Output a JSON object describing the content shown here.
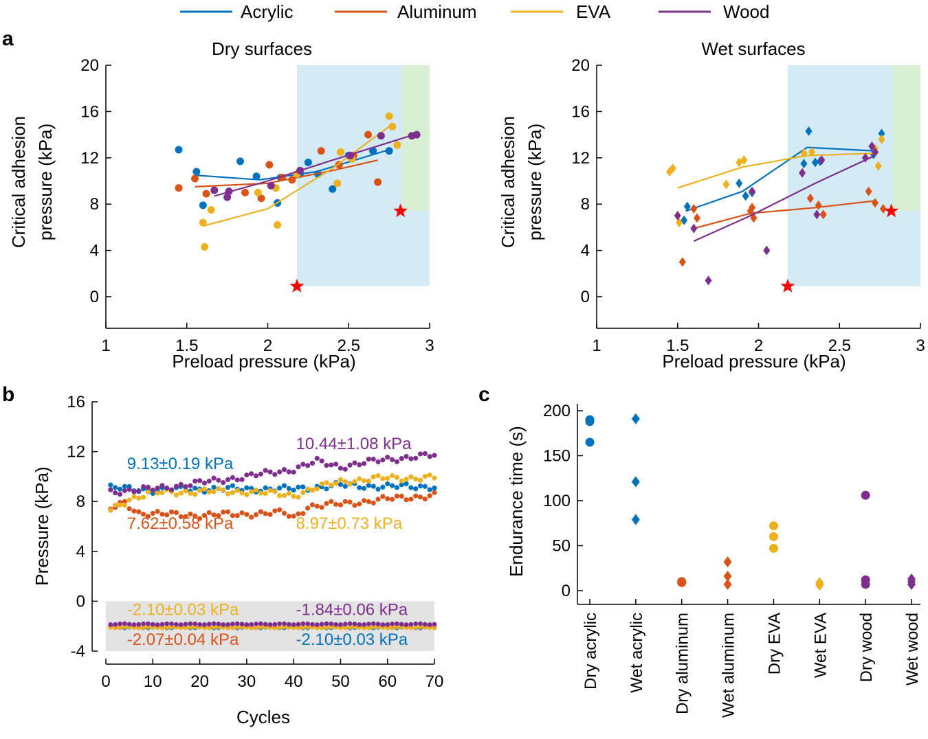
{
  "colors": {
    "acrylic": "#0072bd",
    "aluminum": "#d95319",
    "eva": "#edb120",
    "wood": "#7e2f8e",
    "star": "#ff0000",
    "blue_region": "#d4eaf5",
    "green_region": "#d8efd3",
    "gray_band": "#e3e3e3"
  },
  "legend": [
    {
      "label": "Acrylic",
      "color": "#0072bd"
    },
    {
      "label": "Aluminum",
      "color": "#d95319"
    },
    {
      "label": "EVA",
      "color": "#edb120"
    },
    {
      "label": "Wood",
      "color": "#7e2f8e"
    }
  ],
  "panels": {
    "a": "a",
    "b": "b",
    "c": "c"
  },
  "chart_data": [
    {
      "id": "dry",
      "type": "scatter",
      "title": "Dry surfaces",
      "xlabel": "Preload pressure (kPa)",
      "ylabel": [
        "Critical adhesion",
        "pressure (kPa)"
      ],
      "xlim": [
        1,
        3
      ],
      "ylim": [
        0,
        20
      ],
      "xticks": [
        1,
        1.5,
        2,
        2.5,
        3
      ],
      "xticklabels": [
        "1",
        "1.5",
        "2",
        "2.5",
        "3"
      ],
      "yticks": [
        0,
        4,
        8,
        12,
        16,
        20
      ],
      "yticklabels": [
        "0",
        "4",
        "8",
        "12",
        "16",
        "20"
      ],
      "regions": [
        {
          "x": [
            2.18,
            3.0
          ],
          "y": [
            0.9,
            20
          ],
          "color": "#d4eaf5"
        },
        {
          "x": [
            2.83,
            3.0
          ],
          "y": [
            7.4,
            20
          ],
          "color": "#d8efd3"
        }
      ],
      "stars": [
        {
          "x": 2.18,
          "y": 0.9
        },
        {
          "x": 2.82,
          "y": 7.4
        }
      ],
      "series": [
        {
          "name": "Acrylic",
          "color": "#0072bd",
          "points": [
            [
              1.45,
              12.7
            ],
            [
              1.56,
              10.8
            ],
            [
              1.6,
              7.9
            ],
            [
              1.83,
              11.7
            ],
            [
              1.93,
              10.4
            ],
            [
              2.06,
              8.1
            ],
            [
              2.08,
              10.3
            ],
            [
              2.2,
              10.6
            ],
            [
              2.25,
              11.6
            ],
            [
              2.31,
              10.6
            ],
            [
              2.4,
              9.3
            ],
            [
              2.5,
              12.2
            ],
            [
              2.65,
              12.6
            ],
            [
              2.75,
              12.6
            ]
          ],
          "fit": [
            [
              1.55,
              10.5
            ],
            [
              1.95,
              10.1
            ],
            [
              2.3,
              10.8
            ],
            [
              2.75,
              12.7
            ]
          ]
        },
        {
          "name": "Aluminum",
          "color": "#d95319",
          "points": [
            [
              1.45,
              9.4
            ],
            [
              1.55,
              10.2
            ],
            [
              1.62,
              8.9
            ],
            [
              1.86,
              9.0
            ],
            [
              1.96,
              8.5
            ],
            [
              2.01,
              11.4
            ],
            [
              2.09,
              10.3
            ],
            [
              2.15,
              10.1
            ],
            [
              2.33,
              12.6
            ],
            [
              2.44,
              11.4
            ],
            [
              2.53,
              12.2
            ],
            [
              2.62,
              14.0
            ],
            [
              2.68,
              9.9
            ]
          ],
          "fit": [
            [
              1.55,
              9.5
            ],
            [
              2.0,
              9.8
            ],
            [
              2.4,
              10.9
            ],
            [
              2.68,
              11.8
            ]
          ]
        },
        {
          "name": "EVA",
          "color": "#edb120",
          "points": [
            [
              1.6,
              6.4
            ],
            [
              1.61,
              4.3
            ],
            [
              1.65,
              7.5
            ],
            [
              1.94,
              9.0
            ],
            [
              2.05,
              9.4
            ],
            [
              2.06,
              6.2
            ],
            [
              2.18,
              10.6
            ],
            [
              2.43,
              9.8
            ],
            [
              2.45,
              12.5
            ],
            [
              2.52,
              11.9
            ],
            [
              2.75,
              15.6
            ],
            [
              2.77,
              14.7
            ],
            [
              2.8,
              13.1
            ]
          ],
          "fit": [
            [
              1.6,
              6.1
            ],
            [
              2.0,
              7.6
            ],
            [
              2.4,
              11.1
            ],
            [
              2.77,
              14.9
            ]
          ]
        },
        {
          "name": "Wood",
          "color": "#7e2f8e",
          "points": [
            [
              1.67,
              9.2
            ],
            [
              1.75,
              8.6
            ],
            [
              1.76,
              9.1
            ],
            [
              2.02,
              9.6
            ],
            [
              2.2,
              10.9
            ],
            [
              2.51,
              12.2
            ],
            [
              2.7,
              13.9
            ],
            [
              2.89,
              13.9
            ],
            [
              2.92,
              14.0
            ]
          ],
          "fit": [
            [
              1.67,
              8.7
            ],
            [
              2.0,
              10.0
            ],
            [
              2.4,
              11.8
            ],
            [
              2.88,
              13.9
            ]
          ]
        }
      ]
    },
    {
      "id": "wet",
      "type": "scatter",
      "title": "Wet surfaces",
      "xlabel": "Preload pressure (kPa)",
      "ylabel": [
        "Critical adhesion",
        "pressure (kPa)"
      ],
      "xlim": [
        1,
        3
      ],
      "ylim": [
        0,
        20
      ],
      "xticks": [
        1,
        1.5,
        2,
        2.5,
        3
      ],
      "xticklabels": [
        "1",
        "1.5",
        "2",
        "2.5",
        "3"
      ],
      "yticks": [
        0,
        4,
        8,
        12,
        16,
        20
      ],
      "yticklabels": [
        "0",
        "4",
        "8",
        "12",
        "16",
        "20"
      ],
      "regions": [
        {
          "x": [
            2.18,
            3.0
          ],
          "y": [
            0.9,
            20
          ],
          "color": "#d4eaf5"
        },
        {
          "x": [
            2.83,
            3.0
          ],
          "y": [
            7.4,
            20
          ],
          "color": "#d8efd3"
        }
      ],
      "stars": [
        {
          "x": 2.18,
          "y": 0.9
        },
        {
          "x": 2.82,
          "y": 7.4
        }
      ],
      "series": [
        {
          "name": "Acrylic",
          "color": "#0072bd",
          "points": [
            [
              1.54,
              6.6
            ],
            [
              1.56,
              7.8
            ],
            [
              1.88,
              9.8
            ],
            [
              1.92,
              8.7
            ],
            [
              1.96,
              9.0
            ],
            [
              2.28,
              11.5
            ],
            [
              2.31,
              14.3
            ],
            [
              2.35,
              11.6
            ],
            [
              2.38,
              11.7
            ],
            [
              2.71,
              12.3
            ],
            [
              2.76,
              14.1
            ]
          ],
          "fit": [
            [
              1.55,
              7.4
            ],
            [
              1.9,
              9.1
            ],
            [
              2.3,
              12.9
            ],
            [
              2.72,
              12.6
            ]
          ]
        },
        {
          "name": "Aluminum",
          "color": "#d95319",
          "points": [
            [
              1.53,
              3.0
            ],
            [
              1.6,
              7.6
            ],
            [
              1.62,
              6.8
            ],
            [
              1.95,
              7.4
            ],
            [
              1.96,
              7.7
            ],
            [
              1.97,
              6.8
            ],
            [
              2.32,
              8.5
            ],
            [
              2.37,
              7.9
            ],
            [
              2.4,
              7.1
            ],
            [
              2.68,
              9.1
            ],
            [
              2.72,
              8.1
            ],
            [
              2.77,
              7.6
            ]
          ],
          "fit": [
            [
              1.6,
              5.9
            ],
            [
              1.95,
              7.2
            ],
            [
              2.35,
              7.7
            ],
            [
              2.73,
              8.3
            ]
          ]
        },
        {
          "name": "EVA",
          "color": "#edb120",
          "points": [
            [
              1.45,
              10.8
            ],
            [
              1.47,
              11.1
            ],
            [
              1.51,
              6.4
            ],
            [
              1.8,
              9.7
            ],
            [
              1.88,
              11.6
            ],
            [
              1.91,
              11.8
            ],
            [
              2.28,
              12.4
            ],
            [
              2.33,
              12.5
            ],
            [
              2.72,
              12.8
            ],
            [
              2.74,
              11.3
            ],
            [
              2.76,
              13.6
            ]
          ],
          "fit": [
            [
              1.5,
              9.4
            ],
            [
              1.9,
              11.2
            ],
            [
              2.3,
              12.2
            ],
            [
              2.74,
              12.4
            ]
          ]
        },
        {
          "name": "Wood",
          "color": "#7e2f8e",
          "points": [
            [
              1.5,
              7.0
            ],
            [
              1.6,
              5.9
            ],
            [
              1.69,
              1.4
            ],
            [
              1.96,
              9.1
            ],
            [
              2.05,
              4.0
            ],
            [
              2.27,
              10.7
            ],
            [
              2.36,
              7.1
            ],
            [
              2.39,
              11.8
            ],
            [
              2.66,
              12.0
            ],
            [
              2.7,
              13.0
            ],
            [
              2.72,
              12.5
            ]
          ],
          "fit": [
            [
              1.6,
              4.8
            ],
            [
              1.95,
              7.0
            ],
            [
              2.35,
              9.8
            ],
            [
              2.72,
              12.2
            ]
          ]
        }
      ]
    },
    {
      "id": "cycles",
      "type": "scatter",
      "xlabel": "Cycles",
      "ylabel": "Pressure (kPa)",
      "xlim": [
        0,
        70
      ],
      "ylim": [
        -4,
        16
      ],
      "xticks": [
        0,
        10,
        20,
        30,
        40,
        50,
        60,
        70
      ],
      "xticklabels": [
        "0",
        "10",
        "20",
        "30",
        "40",
        "50",
        "60",
        "70"
      ],
      "yticks": [
        -4,
        0,
        4,
        8,
        12,
        16
      ],
      "yticklabels": [
        "-4",
        "0",
        "4",
        "8",
        "12",
        "16"
      ],
      "band": {
        "y": [
          -4,
          0
        ],
        "color": "#e3e3e3"
      },
      "series": [
        {
          "name": "Acrylic",
          "color": "#0072bd",
          "high_keys": [
            [
              1,
              9.1
            ],
            [
              10,
              8.9
            ],
            [
              20,
              9.0
            ],
            [
              30,
              9.0
            ],
            [
              40,
              9.0
            ],
            [
              50,
              9.3
            ],
            [
              60,
              9.2
            ],
            [
              70,
              9.2
            ]
          ],
          "low": -2.1
        },
        {
          "name": "Aluminum",
          "color": "#d95319",
          "high_keys": [
            [
              1,
              7.4
            ],
            [
              4,
              7.9
            ],
            [
              7,
              7.1
            ],
            [
              10,
              7.0
            ],
            [
              20,
              6.9
            ],
            [
              30,
              7.0
            ],
            [
              38,
              7.1
            ],
            [
              40,
              6.7
            ],
            [
              43,
              7.6
            ],
            [
              50,
              7.8
            ],
            [
              60,
              8.2
            ],
            [
              70,
              8.5
            ]
          ],
          "low": -2.07
        },
        {
          "name": "EVA",
          "color": "#edb120",
          "high_keys": [
            [
              1,
              7.3
            ],
            [
              5,
              8.2
            ],
            [
              10,
              8.7
            ],
            [
              20,
              8.8
            ],
            [
              30,
              8.8
            ],
            [
              40,
              8.5
            ],
            [
              45,
              9.1
            ],
            [
              50,
              9.6
            ],
            [
              60,
              9.9
            ],
            [
              70,
              9.9
            ]
          ],
          "low": -2.1
        },
        {
          "name": "Wood",
          "color": "#7e2f8e",
          "high_keys": [
            [
              1,
              8.8
            ],
            [
              10,
              9.0
            ],
            [
              20,
              9.5
            ],
            [
              30,
              10.0
            ],
            [
              40,
              10.6
            ],
            [
              45,
              11.2
            ],
            [
              50,
              10.8
            ],
            [
              60,
              11.4
            ],
            [
              70,
              11.7
            ]
          ],
          "low": -1.84
        }
      ],
      "annotations": [
        {
          "text": "9.13±0.19 kPa",
          "series": "Acrylic",
          "x": 4.5,
          "y": 10.6
        },
        {
          "text": "10.44±1.08 kPa",
          "series": "Wood",
          "x": 40.5,
          "y": 12.2
        },
        {
          "text": "7.62±0.58 kPa",
          "series": "Aluminum",
          "x": 4.5,
          "y": 5.8
        },
        {
          "text": "8.97±0.73 kPa",
          "series": "EVA",
          "x": 40.5,
          "y": 5.8
        },
        {
          "text": "-2.10±0.03 kPa",
          "series": "EVA",
          "x": 4.5,
          "y": -1.1
        },
        {
          "text": "-1.84±0.06 kPa",
          "series": "Wood",
          "x": 40.5,
          "y": -1.1
        },
        {
          "text": "-2.07±0.04 kPa",
          "series": "Aluminum",
          "x": 4.5,
          "y": -3.5
        },
        {
          "text": "-2.10±0.03 kPa",
          "series": "Acrylic",
          "x": 40.5,
          "y": -3.5
        }
      ]
    },
    {
      "id": "endurance",
      "type": "scatter",
      "ylabel": "Endurance time (s)",
      "ylim": [
        0,
        200
      ],
      "yticks": [
        0,
        50,
        100,
        150,
        200
      ],
      "yticklabels": [
        "0",
        "50",
        "100",
        "150",
        "200"
      ],
      "categories": [
        "Dry acrylic",
        "Wet acrylic",
        "Dry aluminum",
        "Wet aluminum",
        "Dry EVA",
        "Wet EVA",
        "Dry wood",
        "Wet wood"
      ],
      "groups": [
        {
          "category": "Dry acrylic",
          "color": "#0072bd",
          "marker": "circle",
          "values": [
            190,
            188,
            165
          ]
        },
        {
          "category": "Wet acrylic",
          "color": "#0072bd",
          "marker": "diamond",
          "values": [
            191,
            121,
            79
          ]
        },
        {
          "category": "Dry aluminum",
          "color": "#d95319",
          "marker": "circle",
          "values": [
            10,
            10,
            9
          ]
        },
        {
          "category": "Wet aluminum",
          "color": "#d95319",
          "marker": "diamond",
          "values": [
            32,
            16,
            7
          ]
        },
        {
          "category": "Dry EVA",
          "color": "#edb120",
          "marker": "circle",
          "values": [
            72,
            60,
            47
          ]
        },
        {
          "category": "Wet EVA",
          "color": "#edb120",
          "marker": "diamond",
          "values": [
            9,
            7,
            6
          ]
        },
        {
          "category": "Dry wood",
          "color": "#7e2f8e",
          "marker": "circle",
          "values": [
            106,
            12,
            7
          ]
        },
        {
          "category": "Wet wood",
          "color": "#7e2f8e",
          "marker": "diamond",
          "values": [
            13,
            10,
            7
          ]
        }
      ]
    }
  ]
}
